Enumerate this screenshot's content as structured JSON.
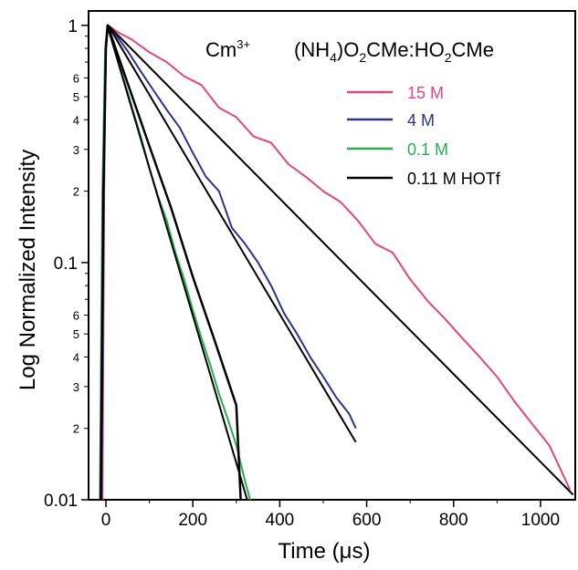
{
  "chart_data": {
    "type": "line",
    "title": "",
    "xlabel": "Time (μs)",
    "ylabel": "Log Normalized Intensity",
    "xlim": [
      -40,
      1080
    ],
    "ylim": [
      0.01,
      1.15
    ],
    "yscale": "log",
    "grid": false,
    "legend_position": "top-right",
    "annotations": {
      "ion_base": "Cm",
      "ion_superscript": "3+",
      "medium_part1": "(NH",
      "medium_subscript": "4",
      "medium_part2": ")O",
      "medium_subscript2": "2",
      "medium_part3": "CMe:HO",
      "medium_subscript3": "2",
      "medium_part4": "CMe"
    },
    "x_ticks": [
      0,
      200,
      400,
      600,
      800,
      1000
    ],
    "x_tick_labels": [
      "0",
      "200",
      "400",
      "600",
      "800",
      "1000"
    ],
    "y_major_ticks": [
      0.01,
      0.1,
      1
    ],
    "y_major_labels": [
      "0.01",
      "0.1",
      "1"
    ],
    "y_minor_ticks": [
      0.02,
      0.03,
      0.04,
      0.05,
      0.06,
      0.2,
      0.3,
      0.4,
      0.5,
      0.6
    ],
    "y_minor_labels": [
      "2",
      "3",
      "4",
      "5",
      "6",
      "2",
      "3",
      "4",
      "5",
      "6"
    ],
    "series": [
      {
        "name": "15 M",
        "color": "#e8437f",
        "rise": [
          [
            -8,
            0.01
          ],
          [
            -4,
            0.2
          ],
          [
            0,
            0.8
          ],
          [
            5,
            1.0
          ]
        ],
        "x": [
          5,
          30,
          60,
          100,
          140,
          180,
          220,
          260,
          300,
          340,
          380,
          420,
          460,
          500,
          540,
          580,
          620,
          660,
          700,
          740,
          780,
          820,
          860,
          900,
          940,
          980,
          1020,
          1050,
          1068
        ],
        "y": [
          1.0,
          0.93,
          0.87,
          0.77,
          0.7,
          0.61,
          0.56,
          0.45,
          0.41,
          0.34,
          0.32,
          0.26,
          0.23,
          0.2,
          0.18,
          0.15,
          0.12,
          0.11,
          0.085,
          0.069,
          0.058,
          0.048,
          0.04,
          0.033,
          0.026,
          0.021,
          0.017,
          0.013,
          0.011
        ]
      },
      {
        "name": "4 M",
        "color": "#2e3192",
        "rise": [
          [
            -10,
            0.01
          ],
          [
            -5,
            0.2
          ],
          [
            0,
            0.8
          ],
          [
            5,
            1.0
          ]
        ],
        "x": [
          5,
          25,
          50,
          80,
          110,
          140,
          170,
          200,
          230,
          260,
          290,
          320,
          350,
          380,
          410,
          440,
          470,
          500,
          530,
          560,
          575
        ],
        "y": [
          1.0,
          0.9,
          0.78,
          0.64,
          0.53,
          0.44,
          0.37,
          0.29,
          0.23,
          0.2,
          0.14,
          0.12,
          0.1,
          0.08,
          0.061,
          0.05,
          0.04,
          0.033,
          0.027,
          0.023,
          0.02
        ]
      },
      {
        "name": "0.1 M",
        "color": "#22b14c",
        "rise": [
          [
            -14,
            0.01
          ],
          [
            -8,
            0.2
          ],
          [
            -2,
            0.8
          ],
          [
            3,
            1.0
          ]
        ],
        "x": [
          3,
          20,
          40,
          60,
          80,
          100,
          120,
          140,
          160,
          180,
          200,
          220,
          240,
          260,
          280,
          300,
          320,
          332
        ],
        "y": [
          1.0,
          0.8,
          0.6,
          0.45,
          0.34,
          0.25,
          0.19,
          0.15,
          0.11,
          0.085,
          0.063,
          0.048,
          0.037,
          0.028,
          0.022,
          0.017,
          0.012,
          0.01
        ]
      },
      {
        "name": "0.11 M HOTf",
        "color": "#000000",
        "rise": [
          [
            -12,
            0.01
          ],
          [
            -6,
            0.2
          ],
          [
            0,
            0.8
          ],
          [
            4,
            1.0
          ]
        ],
        "x": [
          4,
          50,
          100,
          150,
          200,
          250,
          300,
          310
        ],
        "y": [
          1.0,
          0.57,
          0.31,
          0.17,
          0.087,
          0.047,
          0.025,
          0.01
        ]
      }
    ],
    "fits": [
      {
        "x": [
          5,
          1075
        ],
        "y": [
          1.0,
          0.0105
        ],
        "color": "#000000"
      },
      {
        "x": [
          5,
          575
        ],
        "y": [
          1.0,
          0.0175
        ],
        "color": "#000000"
      },
      {
        "x": [
          3,
          325
        ],
        "y": [
          1.0,
          0.01
        ],
        "color": "#000000"
      }
    ]
  }
}
